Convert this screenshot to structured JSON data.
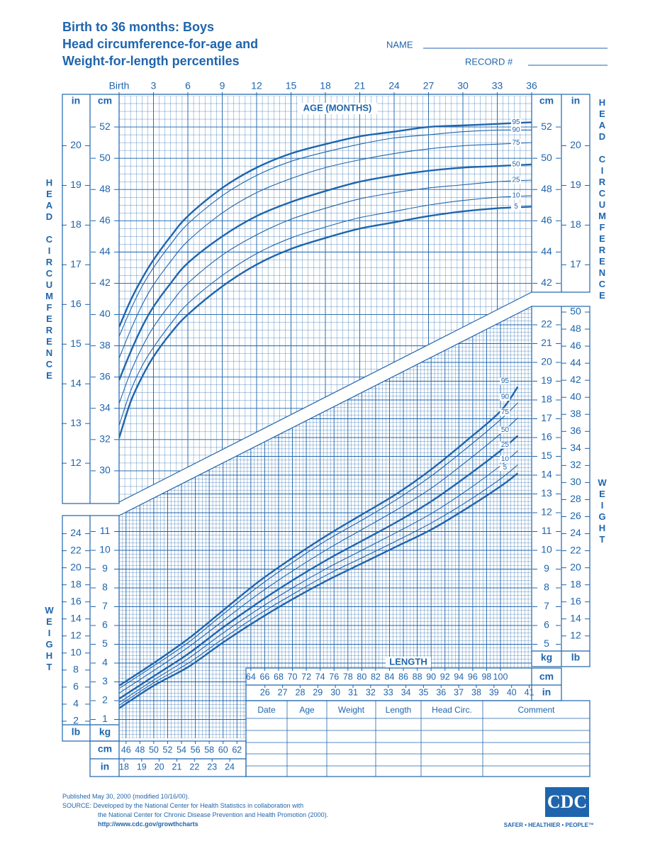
{
  "header": {
    "title_lines": [
      "Birth to 36 months: Boys",
      "Head circumference-for-age and",
      "Weight-for-length percentiles"
    ],
    "name_label": "NAME",
    "record_label": "RECORD #"
  },
  "chart_data": [
    {
      "type": "line",
      "x_label": "AGE (MONTHS)",
      "y_label": "HEAD CIRCUMFERENCE",
      "x": [
        0,
        1,
        2,
        3,
        4.5,
        6,
        9,
        12,
        15,
        18,
        21,
        24,
        27,
        30,
        33,
        36
      ],
      "xlim": [
        0,
        36
      ],
      "xticks": [
        {
          "value": 0,
          "label": "Birth"
        },
        3,
        6,
        9,
        12,
        15,
        18,
        21,
        24,
        27,
        30,
        33,
        36
      ],
      "y_unit": "cm",
      "ylim": [
        28,
        54
      ],
      "yticks": [
        30,
        32,
        34,
        36,
        38,
        40,
        42,
        44,
        46,
        48,
        50,
        52
      ],
      "y2_unit": "in",
      "y2lim": [
        11.02,
        21.26
      ],
      "y2ticks": [
        12,
        13,
        14,
        15,
        16,
        17,
        18,
        19,
        20
      ],
      "grid": true,
      "series": [
        {
          "name": "95",
          "color": "#1f65ad",
          "bold": true,
          "values": [
            39.2,
            40.9,
            42.3,
            43.5,
            45.0,
            46.3,
            48.1,
            49.4,
            50.3,
            50.9,
            51.4,
            51.7,
            52.0,
            52.1,
            52.2,
            52.3
          ]
        },
        {
          "name": "90",
          "color": "#1f65ad",
          "bold": false,
          "values": [
            38.6,
            40.3,
            41.8,
            43.0,
            44.5,
            45.8,
            47.6,
            48.9,
            49.8,
            50.4,
            50.9,
            51.3,
            51.5,
            51.7,
            51.8,
            51.8
          ]
        },
        {
          "name": "75",
          "color": "#1f65ad",
          "bold": false,
          "values": [
            37.2,
            39.0,
            40.6,
            41.9,
            43.4,
            44.7,
            46.5,
            47.8,
            48.7,
            49.4,
            49.9,
            50.3,
            50.6,
            50.8,
            50.9,
            51.0
          ]
        },
        {
          "name": "50",
          "color": "#1f65ad",
          "bold": true,
          "values": [
            35.8,
            37.6,
            39.2,
            40.5,
            42.0,
            43.3,
            45.0,
            46.3,
            47.2,
            47.9,
            48.5,
            48.9,
            49.2,
            49.4,
            49.5,
            49.6
          ]
        },
        {
          "name": "25",
          "color": "#1f65ad",
          "bold": false,
          "values": [
            34.3,
            36.3,
            37.9,
            39.2,
            40.7,
            42.0,
            43.8,
            45.1,
            46.1,
            46.8,
            47.4,
            47.8,
            48.1,
            48.3,
            48.5,
            48.6
          ]
        },
        {
          "name": "10",
          "color": "#1f65ad",
          "bold": false,
          "values": [
            32.9,
            35.1,
            36.7,
            37.9,
            39.4,
            40.7,
            42.5,
            43.9,
            44.9,
            45.6,
            46.2,
            46.6,
            47.0,
            47.3,
            47.5,
            47.6
          ]
        },
        {
          "name": "5",
          "color": "#1f65ad",
          "bold": true,
          "values": [
            32.1,
            34.4,
            36.0,
            37.3,
            38.8,
            40.0,
            41.8,
            43.2,
            44.2,
            44.9,
            45.5,
            45.9,
            46.3,
            46.6,
            46.8,
            46.9
          ]
        }
      ]
    },
    {
      "type": "line",
      "x_label": "LENGTH",
      "y_label": "WEIGHT",
      "x": [
        45,
        50,
        55,
        60,
        65,
        70,
        75,
        80,
        85,
        90,
        95,
        100,
        102.5
      ],
      "x_unit": "cm",
      "xlim": [
        45,
        104.5
      ],
      "xticks": [
        46,
        48,
        50,
        52,
        54,
        56,
        58,
        60,
        62,
        64,
        66,
        68,
        70,
        72,
        74,
        76,
        78,
        80,
        82,
        84,
        86,
        88,
        90,
        92,
        94,
        96,
        98,
        100
      ],
      "x2_unit": "in",
      "x2lim": [
        17.72,
        41.14
      ],
      "x2ticks": [
        18,
        19,
        20,
        21,
        22,
        23,
        24,
        26,
        27,
        28,
        29,
        30,
        31,
        32,
        33,
        34,
        35,
        36,
        37,
        38,
        39,
        40,
        41
      ],
      "y_unit": "kg",
      "ylim": [
        0,
        23
      ],
      "yticks": [
        1,
        2,
        3,
        4,
        5,
        6,
        7,
        8,
        9,
        10,
        11,
        12,
        13,
        14,
        15,
        16,
        17,
        18,
        19,
        20,
        21,
        22
      ],
      "y2_unit": "lb",
      "y2lim": [
        0,
        50.71
      ],
      "y2ticks": [
        2,
        4,
        6,
        8,
        10,
        12,
        14,
        16,
        18,
        20,
        22,
        24,
        26,
        28,
        30,
        32,
        34,
        36,
        38,
        40,
        42,
        44,
        46,
        48,
        50
      ],
      "grid": true,
      "series": [
        {
          "name": "95",
          "color": "#1f65ad",
          "bold": true,
          "values": [
            2.8,
            4.0,
            5.3,
            6.8,
            8.3,
            9.6,
            10.8,
            11.9,
            13.0,
            14.3,
            15.8,
            17.4,
            18.7
          ]
        },
        {
          "name": "90",
          "color": "#1f65ad",
          "bold": false,
          "values": [
            2.65,
            3.85,
            5.1,
            6.6,
            8.05,
            9.35,
            10.55,
            11.6,
            12.7,
            13.95,
            15.4,
            16.95,
            17.85
          ]
        },
        {
          "name": "75",
          "color": "#1f65ad",
          "bold": false,
          "values": [
            2.4,
            3.6,
            4.85,
            6.25,
            7.65,
            8.9,
            10.05,
            11.1,
            12.15,
            13.3,
            14.7,
            16.2,
            17.05
          ]
        },
        {
          "name": "50",
          "color": "#1f65ad",
          "bold": true,
          "values": [
            2.1,
            3.3,
            4.5,
            5.9,
            7.2,
            8.4,
            9.5,
            10.5,
            11.5,
            12.6,
            13.9,
            15.3,
            16.1
          ]
        },
        {
          "name": "25",
          "color": "#1f65ad",
          "bold": false,
          "values": [
            1.9,
            3.1,
            4.25,
            5.6,
            6.85,
            8.0,
            9.05,
            10.0,
            10.95,
            11.95,
            13.15,
            14.5,
            15.3
          ]
        },
        {
          "name": "10",
          "color": "#1f65ad",
          "bold": false,
          "values": [
            1.75,
            2.95,
            4.0,
            5.3,
            6.55,
            7.65,
            8.7,
            9.6,
            10.5,
            11.45,
            12.55,
            13.8,
            14.55
          ]
        },
        {
          "name": "5",
          "color": "#1f65ad",
          "bold": true,
          "values": [
            1.6,
            2.8,
            3.8,
            5.1,
            6.3,
            7.4,
            8.4,
            9.3,
            10.2,
            11.1,
            12.2,
            13.4,
            14.1
          ]
        }
      ]
    }
  ],
  "table": {
    "columns": [
      "Date",
      "Age",
      "Weight",
      "Length",
      "Head Circ.",
      "Comment"
    ]
  },
  "footer": {
    "lines": [
      "Published May 30, 2000 (modified 10/16/00).",
      "SOURCE: Developed by the National Center for Health Statistics in collaboration with",
      "the National Center for Chronic Disease Prevention and Health Promotion (2000).",
      "http://www.cdc.gov/growthcharts"
    ],
    "logo": "CDC",
    "tagline": "SAFER • HEALTHIER • PEOPLE™"
  }
}
